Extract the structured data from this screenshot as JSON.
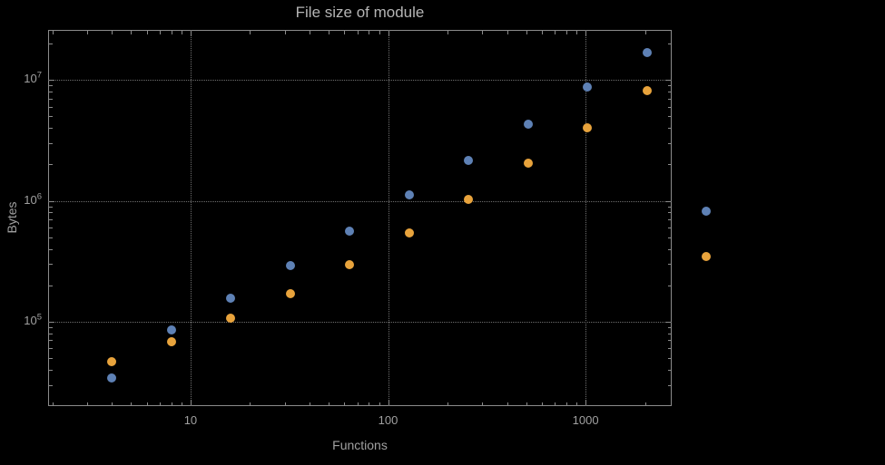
{
  "colors": {
    "background": "#000000",
    "frame": "#8b8b8b",
    "gridlines": "#6f6f6f",
    "text": "#a0a0a0",
    "series_blue": "#5e81b5",
    "series_orange": "#e8a33c"
  },
  "chart_data": {
    "type": "scatter",
    "title": "File size of module",
    "xlabel": "Functions",
    "ylabel": "Bytes",
    "x_scale": "log",
    "y_scale": "log",
    "grid": true,
    "legend": "none",
    "xlim": [
      1.9,
      2730
    ],
    "ylim": [
      20000,
      26000000
    ],
    "x_ticks": [
      {
        "value": 10,
        "label": "10"
      },
      {
        "value": 100,
        "label": "100"
      },
      {
        "value": 1000,
        "label": "1000"
      }
    ],
    "y_ticks": [
      {
        "value": 100000,
        "base": "10",
        "exp": "5"
      },
      {
        "value": 1000000,
        "base": "10",
        "exp": "6"
      },
      {
        "value": 10000000,
        "base": "10",
        "exp": "7"
      }
    ],
    "x": [
      4,
      8,
      16,
      32,
      64,
      128,
      256,
      512,
      1024,
      2048,
      4096
    ],
    "series": [
      {
        "name": "blue-series",
        "color": "#5e81b5",
        "values": [
          34000,
          85000,
          155000,
          290000,
          560000,
          1120000,
          2150000,
          4300000,
          8700000,
          17000000,
          820000
        ]
      },
      {
        "name": "orange-series",
        "color": "#e8a33c",
        "values": [
          47000,
          68000,
          106000,
          170000,
          295000,
          545000,
          1020000,
          2050000,
          4000000,
          8200000,
          345000
        ]
      }
    ]
  }
}
